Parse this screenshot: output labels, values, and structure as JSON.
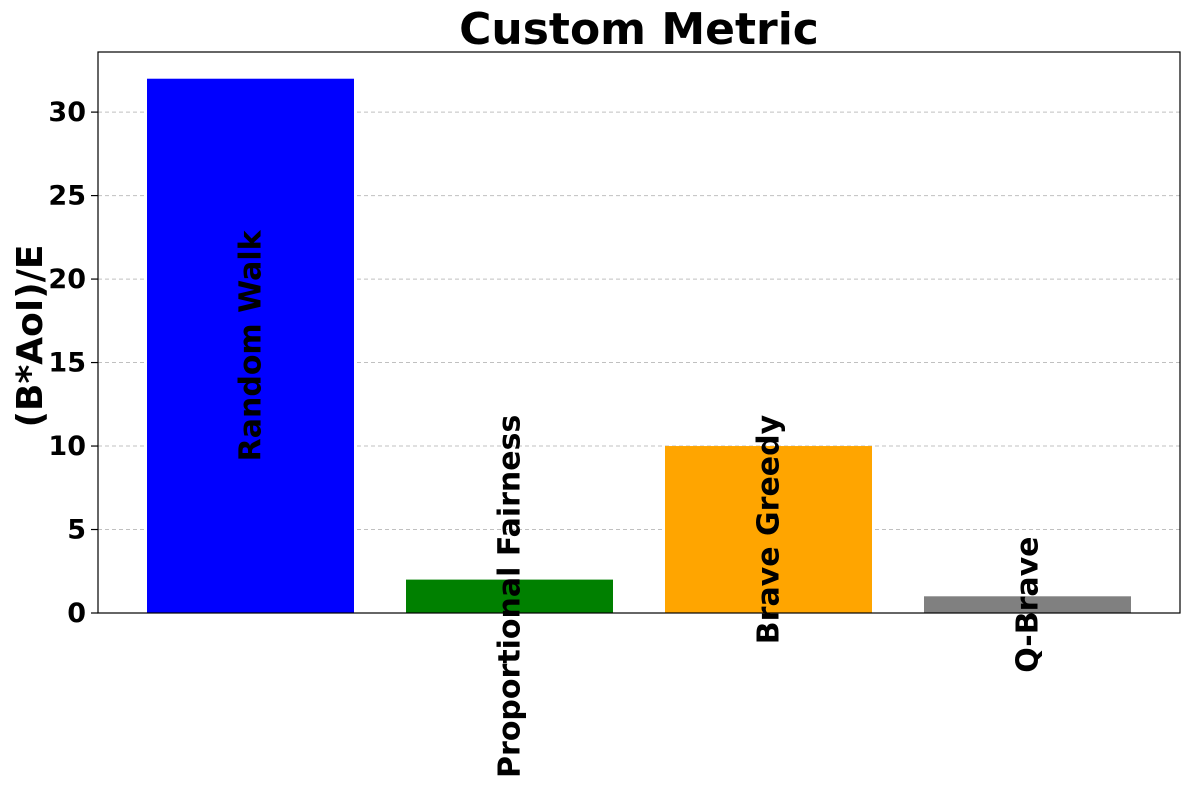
{
  "chart_data": {
    "type": "bar",
    "title": "Custom Metric",
    "xlabel": "",
    "ylabel": "(B*AoI)/E",
    "categories": [
      "Random Walk",
      "Proportional Fairness",
      "Brave Greedy",
      "Q-Brave"
    ],
    "values": [
      32,
      2,
      10,
      1
    ],
    "colors": [
      "#0000ff",
      "#008000",
      "#ffa500",
      "#808080"
    ],
    "ylim": [
      0,
      33.6
    ],
    "yticks": [
      0,
      5,
      10,
      15,
      20,
      25,
      30
    ],
    "grid": "horizontal dashed",
    "legend": "none"
  }
}
